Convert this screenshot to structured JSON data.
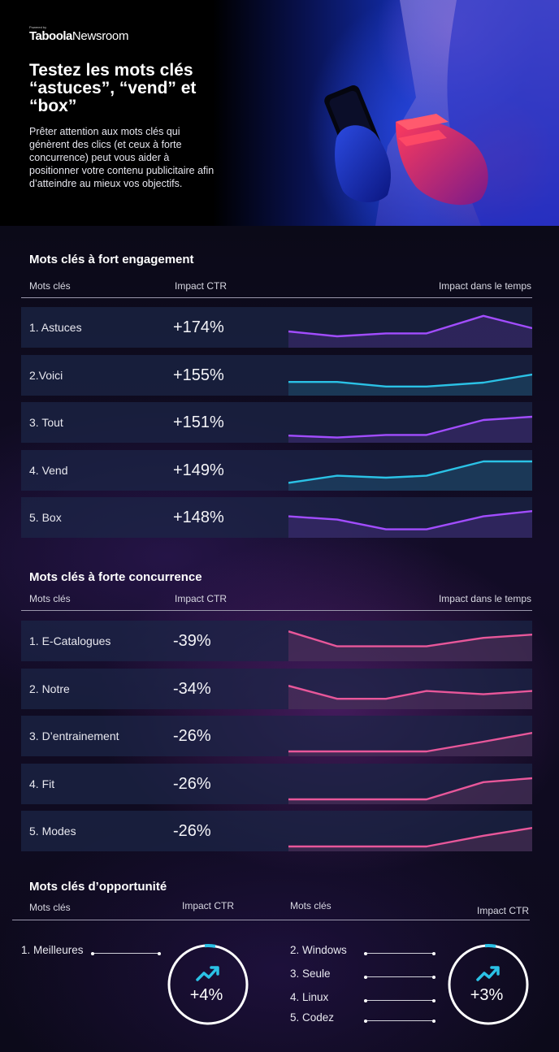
{
  "brand": {
    "powered": "Powered by",
    "logo": "Taboola",
    "product": "Newsroom"
  },
  "hero": {
    "title": "Testez les mots clés “astuces”, “vend” et “box”",
    "text": "Prêter attention aux mots clés qui génèrent des clics (et ceux à forte concurrence) peut vous aider à positionner votre contenu publicitaire afin d’atteindre au mieux vos objectifs."
  },
  "engagement": {
    "title": "Mots clés à fort engagement",
    "col_keyword": "Mots clés",
    "col_ctr": "Impact CTR",
    "col_trend": "Impact dans le temps",
    "rows": [
      {
        "keyword": "1. Astuces",
        "ctr": "+174%",
        "color": "#a24dff",
        "trend": [
          0.4,
          0.25,
          0.34,
          0.34,
          0.88,
          0.5
        ]
      },
      {
        "keyword": "2.Voici",
        "ctr": "+155%",
        "color": "#2bc2e6",
        "trend": [
          0.32,
          0.32,
          0.18,
          0.18,
          0.3,
          0.55
        ]
      },
      {
        "keyword": "3. Tout",
        "ctr": "+151%",
        "color": "#a24dff",
        "trend": [
          0.12,
          0.06,
          0.14,
          0.14,
          0.6,
          0.7
        ]
      },
      {
        "keyword": "4. Vend",
        "ctr": "+149%",
        "color": "#2bc2e6",
        "trend": [
          0.14,
          0.36,
          0.3,
          0.36,
          0.8,
          0.8
        ]
      },
      {
        "keyword": "5. Box",
        "ctr": "+148%",
        "color": "#a24dff",
        "trend": [
          0.56,
          0.46,
          0.16,
          0.16,
          0.56,
          0.72
        ]
      }
    ]
  },
  "competition": {
    "title": "Mots clés à forte concurrence",
    "col_keyword": "Mots clés",
    "col_ctr": "Impact CTR",
    "col_trend": "Impact dans le temps",
    "rows": [
      {
        "keyword": "1. E-Catalogues",
        "ctr": "-39%",
        "color": "#e8579a",
        "trend": [
          0.82,
          0.36,
          0.36,
          0.36,
          0.62,
          0.72
        ]
      },
      {
        "keyword": "2. Notre",
        "ctr": "-34%",
        "color": "#e8579a",
        "trend": [
          0.62,
          0.22,
          0.22,
          0.46,
          0.36,
          0.46
        ]
      },
      {
        "keyword": "3. D’entrainement",
        "ctr": "-26%",
        "color": "#e8579a",
        "trend": [
          0.05,
          0.05,
          0.05,
          0.05,
          0.35,
          0.62
        ]
      },
      {
        "keyword": "4. Fit",
        "ctr": "-26%",
        "color": "#e8579a",
        "trend": [
          0.05,
          0.05,
          0.05,
          0.05,
          0.58,
          0.7
        ]
      },
      {
        "keyword": "5. Modes",
        "ctr": "-26%",
        "color": "#e8579a",
        "trend": [
          0.05,
          0.05,
          0.05,
          0.05,
          0.38,
          0.62
        ]
      }
    ]
  },
  "opportunity": {
    "title": "Mots clés d’opportunité",
    "col_keyword": "Mots clés",
    "col_ctr": "Impact CTR",
    "left": {
      "keywords": [
        "1. Meilleures"
      ],
      "ctr": "+4%"
    },
    "right": {
      "keywords": [
        "2. Windows",
        "3. Seule",
        "4. Linux",
        "5. Codez"
      ],
      "ctr": "+3%"
    }
  },
  "colors": {
    "purple": "#a24dff",
    "cyan": "#2bc2e6",
    "pink": "#e8579a",
    "ring_accent": "#2bc2e6"
  },
  "icons": {
    "trend": "trending-up-icon"
  }
}
